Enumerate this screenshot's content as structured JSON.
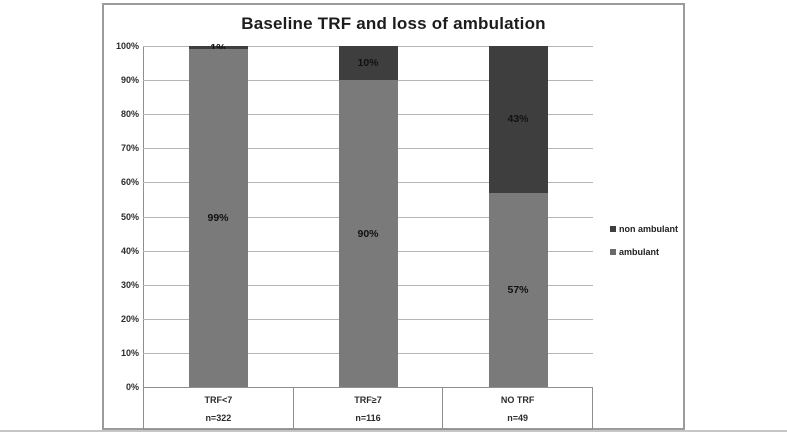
{
  "figure": {
    "title": "Baseline TRF and loss of ambulation"
  },
  "chart_data": {
    "type": "bar",
    "stacked": true,
    "percent_scale": true,
    "title": "Baseline TRF and loss of ambulation",
    "categories": [
      "TRF<7",
      "TRF≥7",
      "NO TRF"
    ],
    "category_counts": [
      "n=322",
      "n=116",
      "n=49"
    ],
    "series": [
      {
        "name": "ambulant",
        "values": [
          99,
          90,
          57
        ],
        "color": "#7a7a7a"
      },
      {
        "name": "non ambulant",
        "values": [
          1,
          10,
          43
        ],
        "color": "#3e3e3e"
      }
    ],
    "value_labels": [
      [
        "99%",
        "1%"
      ],
      [
        "90%",
        "10%"
      ],
      [
        "57%",
        "43%"
      ]
    ],
    "y_ticks": [
      "0%",
      "10%",
      "20%",
      "30%",
      "40%",
      "50%",
      "60%",
      "70%",
      "80%",
      "90%",
      "100%"
    ],
    "ylim": [
      0,
      100
    ],
    "grid": true,
    "legend_position": "right",
    "legend_items": [
      {
        "label": "non ambulant",
        "color": "#3e3e3e"
      },
      {
        "label": "ambulant",
        "color": "#6a6a6a"
      }
    ]
  }
}
